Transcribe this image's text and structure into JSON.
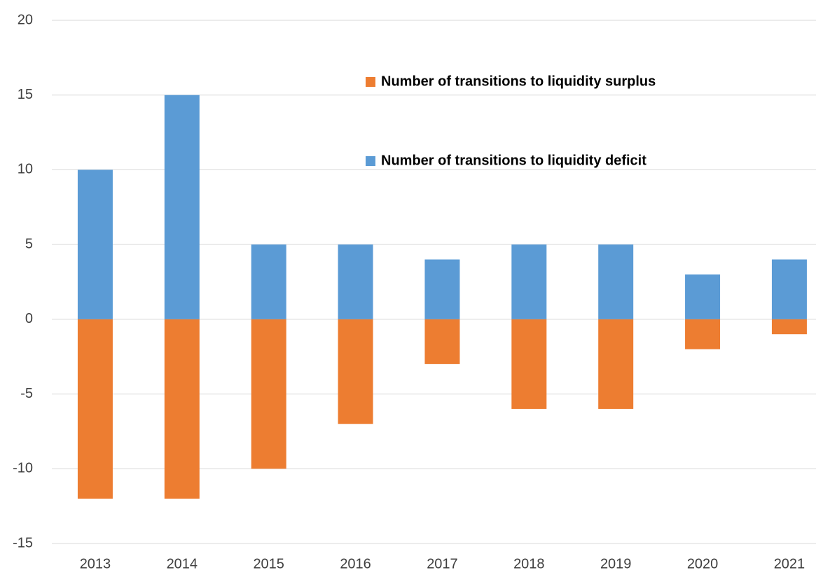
{
  "chart_data": {
    "type": "bar",
    "categories": [
      "2013",
      "2014",
      "2015",
      "2016",
      "2017",
      "2018",
      "2019",
      "2020",
      "2021"
    ],
    "series": [
      {
        "name": "Number of transitions to liquidity surplus",
        "color": "#ed7d31",
        "values": [
          -12,
          -12,
          -10,
          -7,
          -3,
          -6,
          -6,
          -2,
          -1
        ]
      },
      {
        "name": "Number of transitions to liquidity deficit",
        "color": "#5b9bd5",
        "values": [
          10,
          15,
          5,
          5,
          4,
          5,
          5,
          3,
          4
        ]
      }
    ],
    "ylim": [
      -15,
      20
    ],
    "yticks": [
      -15,
      -10,
      -5,
      0,
      5,
      10,
      15,
      20
    ],
    "grid": true,
    "legend": "upper-center"
  }
}
